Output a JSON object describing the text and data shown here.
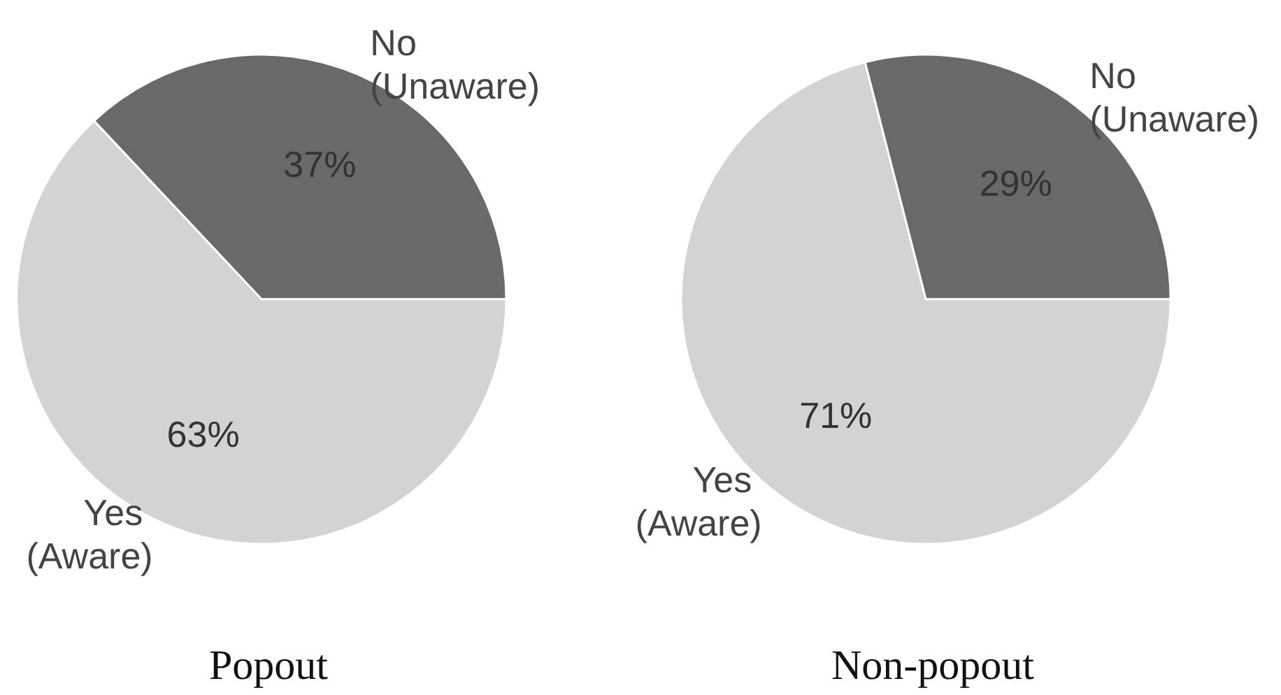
{
  "chart_data": [
    {
      "type": "pie",
      "title": "Popout",
      "categories": [
        "No (Unaware)",
        "Yes (Aware)"
      ],
      "values": [
        37,
        63
      ],
      "colors": [
        "#696969",
        "#d3d3d3"
      ],
      "value_labels": [
        "37%",
        "63%"
      ]
    },
    {
      "type": "pie",
      "title": "Non-popout",
      "categories": [
        "No (Unaware)",
        "Yes (Aware)"
      ],
      "values": [
        29,
        71
      ],
      "colors": [
        "#696969",
        "#d3d3d3"
      ],
      "value_labels": [
        "29%",
        "71%"
      ]
    }
  ]
}
